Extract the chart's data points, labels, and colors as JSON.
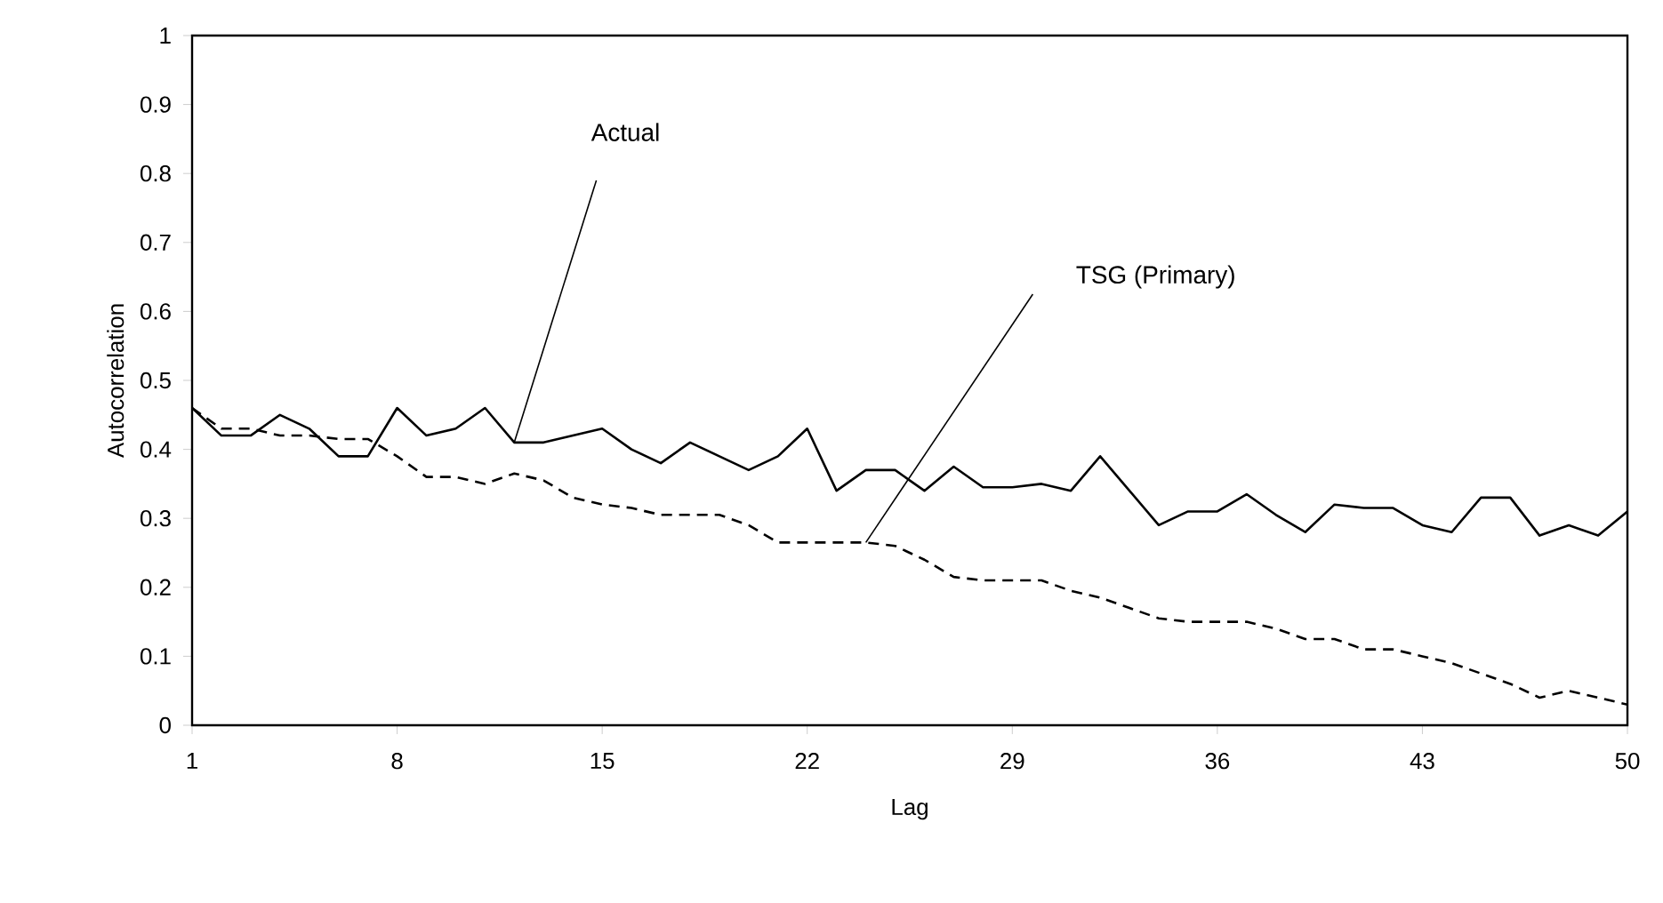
{
  "chart_data": {
    "type": "line",
    "xlabel": "Lag",
    "ylabel": "Autocorrelation",
    "x": [
      1,
      2,
      3,
      4,
      5,
      6,
      7,
      8,
      9,
      10,
      11,
      12,
      13,
      14,
      15,
      16,
      17,
      18,
      19,
      20,
      21,
      22,
      23,
      24,
      25,
      26,
      27,
      28,
      29,
      30,
      31,
      32,
      33,
      34,
      35,
      36,
      37,
      38,
      39,
      40,
      41,
      42,
      43,
      44,
      45,
      46,
      47,
      48,
      49,
      50
    ],
    "series": [
      {
        "color": "#000000",
        "line_style": "solid",
        "values": [
          0.46,
          0.42,
          0.42,
          0.45,
          0.43,
          0.39,
          0.39,
          0.46,
          0.42,
          0.43,
          0.46,
          0.41,
          0.41,
          0.42,
          0.43,
          0.4,
          0.38,
          0.41,
          0.39,
          0.37,
          0.39,
          0.43,
          0.34,
          0.37,
          0.37,
          0.34,
          0.375,
          0.345,
          0.345,
          0.35,
          0.34,
          0.39,
          0.34,
          0.29,
          0.31,
          0.31,
          0.335,
          0.305,
          0.28,
          0.32,
          0.315,
          0.315,
          0.29,
          0.28,
          0.33,
          0.33,
          0.275,
          0.29,
          0.275,
          0.31
        ]
      },
      {
        "color": "#000000",
        "line_style": "dashed",
        "values": [
          0.46,
          0.43,
          0.43,
          0.42,
          0.42,
          0.415,
          0.415,
          0.39,
          0.36,
          0.36,
          0.35,
          0.365,
          0.355,
          0.33,
          0.32,
          0.315,
          0.305,
          0.305,
          0.305,
          0.29,
          0.265,
          0.265,
          0.265,
          0.265,
          0.26,
          0.24,
          0.215,
          0.21,
          0.21,
          0.21,
          0.195,
          0.185,
          0.17,
          0.155,
          0.15,
          0.15,
          0.15,
          0.14,
          0.125,
          0.125,
          0.11,
          0.11,
          0.1,
          0.09,
          0.075,
          0.06,
          0.04,
          0.05,
          0.04,
          0.03
        ]
      }
    ],
    "annotations": [
      "Actual",
      "TSG (Primary)"
    ],
    "xlim": [
      1,
      50
    ],
    "xticks": [
      1,
      8,
      15,
      22,
      29,
      36,
      43,
      50
    ],
    "ylim": [
      0,
      1
    ],
    "yticks": [
      0,
      0.1,
      0.2,
      0.3,
      0.4,
      0.5,
      0.6,
      0.7,
      0.8,
      0.9,
      1
    ],
    "grid": false,
    "marker": "none"
  }
}
